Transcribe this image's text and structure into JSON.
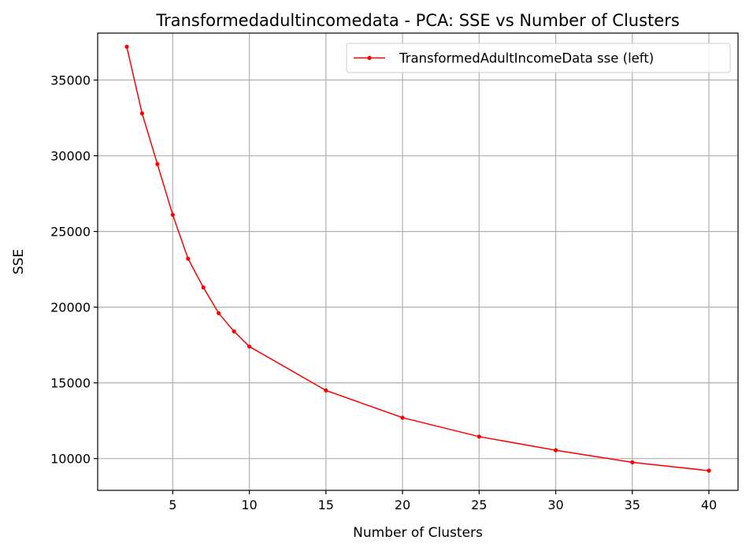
{
  "chart_data": {
    "type": "line",
    "title": "Transformedadultincomedata - PCA: SSE vs Number of Clusters",
    "xlabel": "Number of Clusters",
    "ylabel": "SSE",
    "xlim": [
      0.1,
      41.9
    ],
    "ylim": [
      7900,
      38100
    ],
    "xticks": [
      5,
      10,
      15,
      20,
      25,
      30,
      35,
      40
    ],
    "yticks": [
      10000,
      15000,
      20000,
      25000,
      30000,
      35000
    ],
    "grid": true,
    "legend_position": "top-right",
    "series": [
      {
        "name": "TransformedAdultIncomeData sse (left)",
        "color": "#ff0000",
        "marker": "dot",
        "x": [
          2,
          3,
          4,
          5,
          6,
          7,
          8,
          9,
          10,
          15,
          20,
          25,
          30,
          35,
          40
        ],
        "y": [
          37200,
          32800,
          29450,
          26100,
          23200,
          21300,
          19600,
          18400,
          17400,
          14500,
          12700,
          11450,
          10550,
          9750,
          9200
        ]
      }
    ]
  }
}
